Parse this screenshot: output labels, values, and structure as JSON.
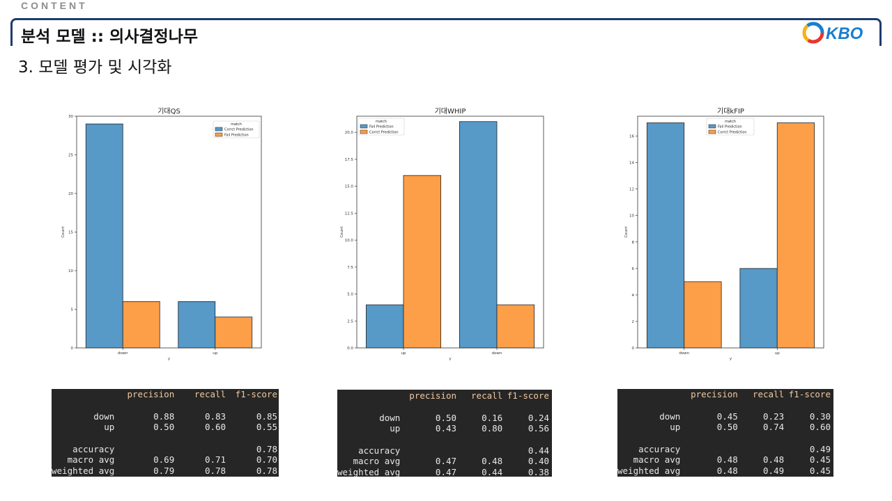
{
  "header": {
    "section_tag": "CONTENT",
    "title": "분석 모델 :: 의사결정나무",
    "subtitle": "3. 모델 평가 및 시각화",
    "logo_text": "KBO"
  },
  "colors": {
    "blue": "#5799c7",
    "orange": "#fd9e48",
    "title_border": "#1f3b6e",
    "logo_blue": "#1a7fd0"
  },
  "chart_data": [
    {
      "type": "bar",
      "title": "기대QS",
      "xlabel": "y",
      "ylabel": "Count",
      "categories": [
        "down",
        "up"
      ],
      "legend_title": "match",
      "legend_position": "top-right",
      "ylim": [
        0,
        30
      ],
      "yticks": [
        0,
        5,
        10,
        15,
        20,
        25,
        30
      ],
      "series": [
        {
          "name": "Corrct Prediction",
          "color": "#5799c7",
          "values": [
            29,
            6
          ]
        },
        {
          "name": "Fail Prediction",
          "color": "#fd9e48",
          "values": [
            6,
            4
          ]
        }
      ]
    },
    {
      "type": "bar",
      "title": "기대WHIP",
      "xlabel": "y",
      "ylabel": "Count",
      "categories": [
        "up",
        "down"
      ],
      "legend_title": "match",
      "legend_position": "top-left",
      "ylim": [
        0,
        21.5
      ],
      "yticks": [
        0.0,
        2.5,
        5.0,
        7.5,
        10.0,
        12.5,
        15.0,
        17.5,
        20.0
      ],
      "series": [
        {
          "name": "Fail Prediction",
          "color": "#5799c7",
          "values": [
            4,
            21
          ]
        },
        {
          "name": "Corrct Prediction",
          "color": "#fd9e48",
          "values": [
            16,
            4
          ]
        }
      ]
    },
    {
      "type": "bar",
      "title": "기대kFIP",
      "xlabel": "y",
      "ylabel": "Count",
      "categories": [
        "down",
        "up"
      ],
      "legend_title": "match",
      "legend_position": "top-center",
      "ylim": [
        0,
        17.5
      ],
      "yticks": [
        0,
        2,
        4,
        6,
        8,
        10,
        12,
        14,
        16
      ],
      "series": [
        {
          "name": "Fail Prediction",
          "color": "#5799c7",
          "values": [
            17,
            6
          ]
        },
        {
          "name": "Corrct Prediction",
          "color": "#fd9e48",
          "values": [
            5,
            17
          ]
        }
      ]
    }
  ],
  "reports": [
    {
      "headers": [
        "precision",
        "recall",
        "f1-score"
      ],
      "classes": [
        {
          "label": "down",
          "values": [
            "0.88",
            "0.83",
            "0.85"
          ]
        },
        {
          "label": "up",
          "values": [
            "0.50",
            "0.60",
            "0.55"
          ]
        }
      ],
      "accuracy": {
        "label": "accuracy",
        "value": "0.78"
      },
      "averages": [
        {
          "label": "macro avg",
          "values": [
            "0.69",
            "0.71",
            "0.70"
          ]
        },
        {
          "label": "weighted avg",
          "values": [
            "0.79",
            "0.78",
            "0.78"
          ]
        }
      ]
    },
    {
      "headers": [
        "precision",
        "recall",
        "f1-score"
      ],
      "classes": [
        {
          "label": "down",
          "values": [
            "0.50",
            "0.16",
            "0.24"
          ]
        },
        {
          "label": "up",
          "values": [
            "0.43",
            "0.80",
            "0.56"
          ]
        }
      ],
      "accuracy": {
        "label": "accuracy",
        "value": "0.44"
      },
      "averages": [
        {
          "label": "macro avg",
          "values": [
            "0.47",
            "0.48",
            "0.40"
          ]
        },
        {
          "label": "weighted avg",
          "values": [
            "0.47",
            "0.44",
            "0.38"
          ]
        }
      ]
    },
    {
      "headers": [
        "precision",
        "recall",
        "f1-score"
      ],
      "classes": [
        {
          "label": "down",
          "values": [
            "0.45",
            "0.23",
            "0.30"
          ]
        },
        {
          "label": "up",
          "values": [
            "0.50",
            "0.74",
            "0.60"
          ]
        }
      ],
      "accuracy": {
        "label": "accuracy",
        "value": "0.49"
      },
      "averages": [
        {
          "label": "macro avg",
          "values": [
            "0.48",
            "0.48",
            "0.45"
          ]
        },
        {
          "label": "weighted avg",
          "values": [
            "0.48",
            "0.49",
            "0.45"
          ]
        }
      ]
    }
  ]
}
